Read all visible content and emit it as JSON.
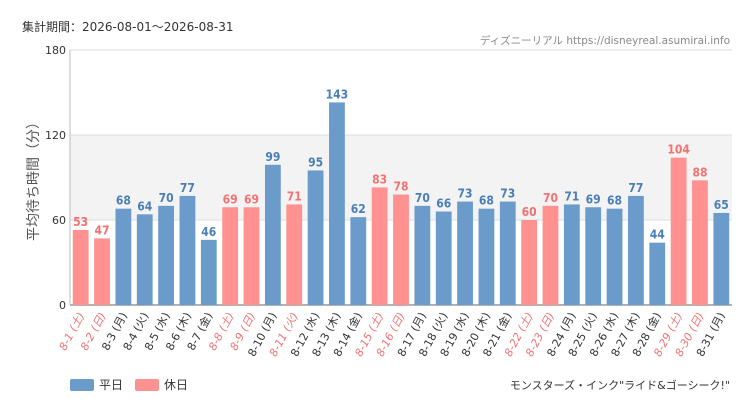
{
  "header": {
    "period": "集計期間：2026-08-01～2026-08-31",
    "credit": "ディズニーリアル https://disneyreal.asumirai.info"
  },
  "legend": {
    "weekday": "平日",
    "holiday": "休日"
  },
  "footer_note": "モンスターズ・インク\"ライド&ゴーシーク!\"",
  "colors": {
    "weekday": "#6b9bcb",
    "holiday": "#ff9191",
    "weekday_label": "#4a7fb5",
    "holiday_label": "#f07272"
  },
  "chart_data": {
    "type": "bar",
    "ylabel": "平均待ち時間（分）",
    "ylim": [
      0,
      180
    ],
    "yticks": [
      0,
      60,
      120,
      180
    ],
    "highlight_band": [
      60,
      120
    ],
    "grid": true,
    "categories": [
      "8-1 (土)",
      "8-2 (日)",
      "8-3 (月)",
      "8-4 (火)",
      "8-5 (水)",
      "8-6 (木)",
      "8-7 (金)",
      "8-8 (土)",
      "8-9 (日)",
      "8-10 (月)",
      "8-11 (火)",
      "8-12 (水)",
      "8-13 (木)",
      "8-14 (金)",
      "8-15 (土)",
      "8-16 (日)",
      "8-17 (月)",
      "8-18 (火)",
      "8-19 (水)",
      "8-20 (木)",
      "8-21 (金)",
      "8-22 (土)",
      "8-23 (日)",
      "8-24 (月)",
      "8-25 (火)",
      "8-26 (水)",
      "8-27 (木)",
      "8-28 (金)",
      "8-29 (土)",
      "8-30 (日)",
      "8-31 (月)"
    ],
    "values": [
      53,
      47,
      68,
      64,
      70,
      77,
      46,
      69,
      69,
      99,
      71,
      95,
      143,
      62,
      83,
      78,
      70,
      66,
      73,
      68,
      73,
      60,
      70,
      71,
      69,
      68,
      77,
      44,
      104,
      88,
      65
    ],
    "day_type": [
      "holiday",
      "holiday",
      "weekday",
      "weekday",
      "weekday",
      "weekday",
      "weekday",
      "holiday",
      "holiday",
      "weekday",
      "holiday",
      "weekday",
      "weekday",
      "weekday",
      "holiday",
      "holiday",
      "weekday",
      "weekday",
      "weekday",
      "weekday",
      "weekday",
      "holiday",
      "holiday",
      "weekday",
      "weekday",
      "weekday",
      "weekday",
      "weekday",
      "holiday",
      "holiday",
      "weekday"
    ]
  }
}
